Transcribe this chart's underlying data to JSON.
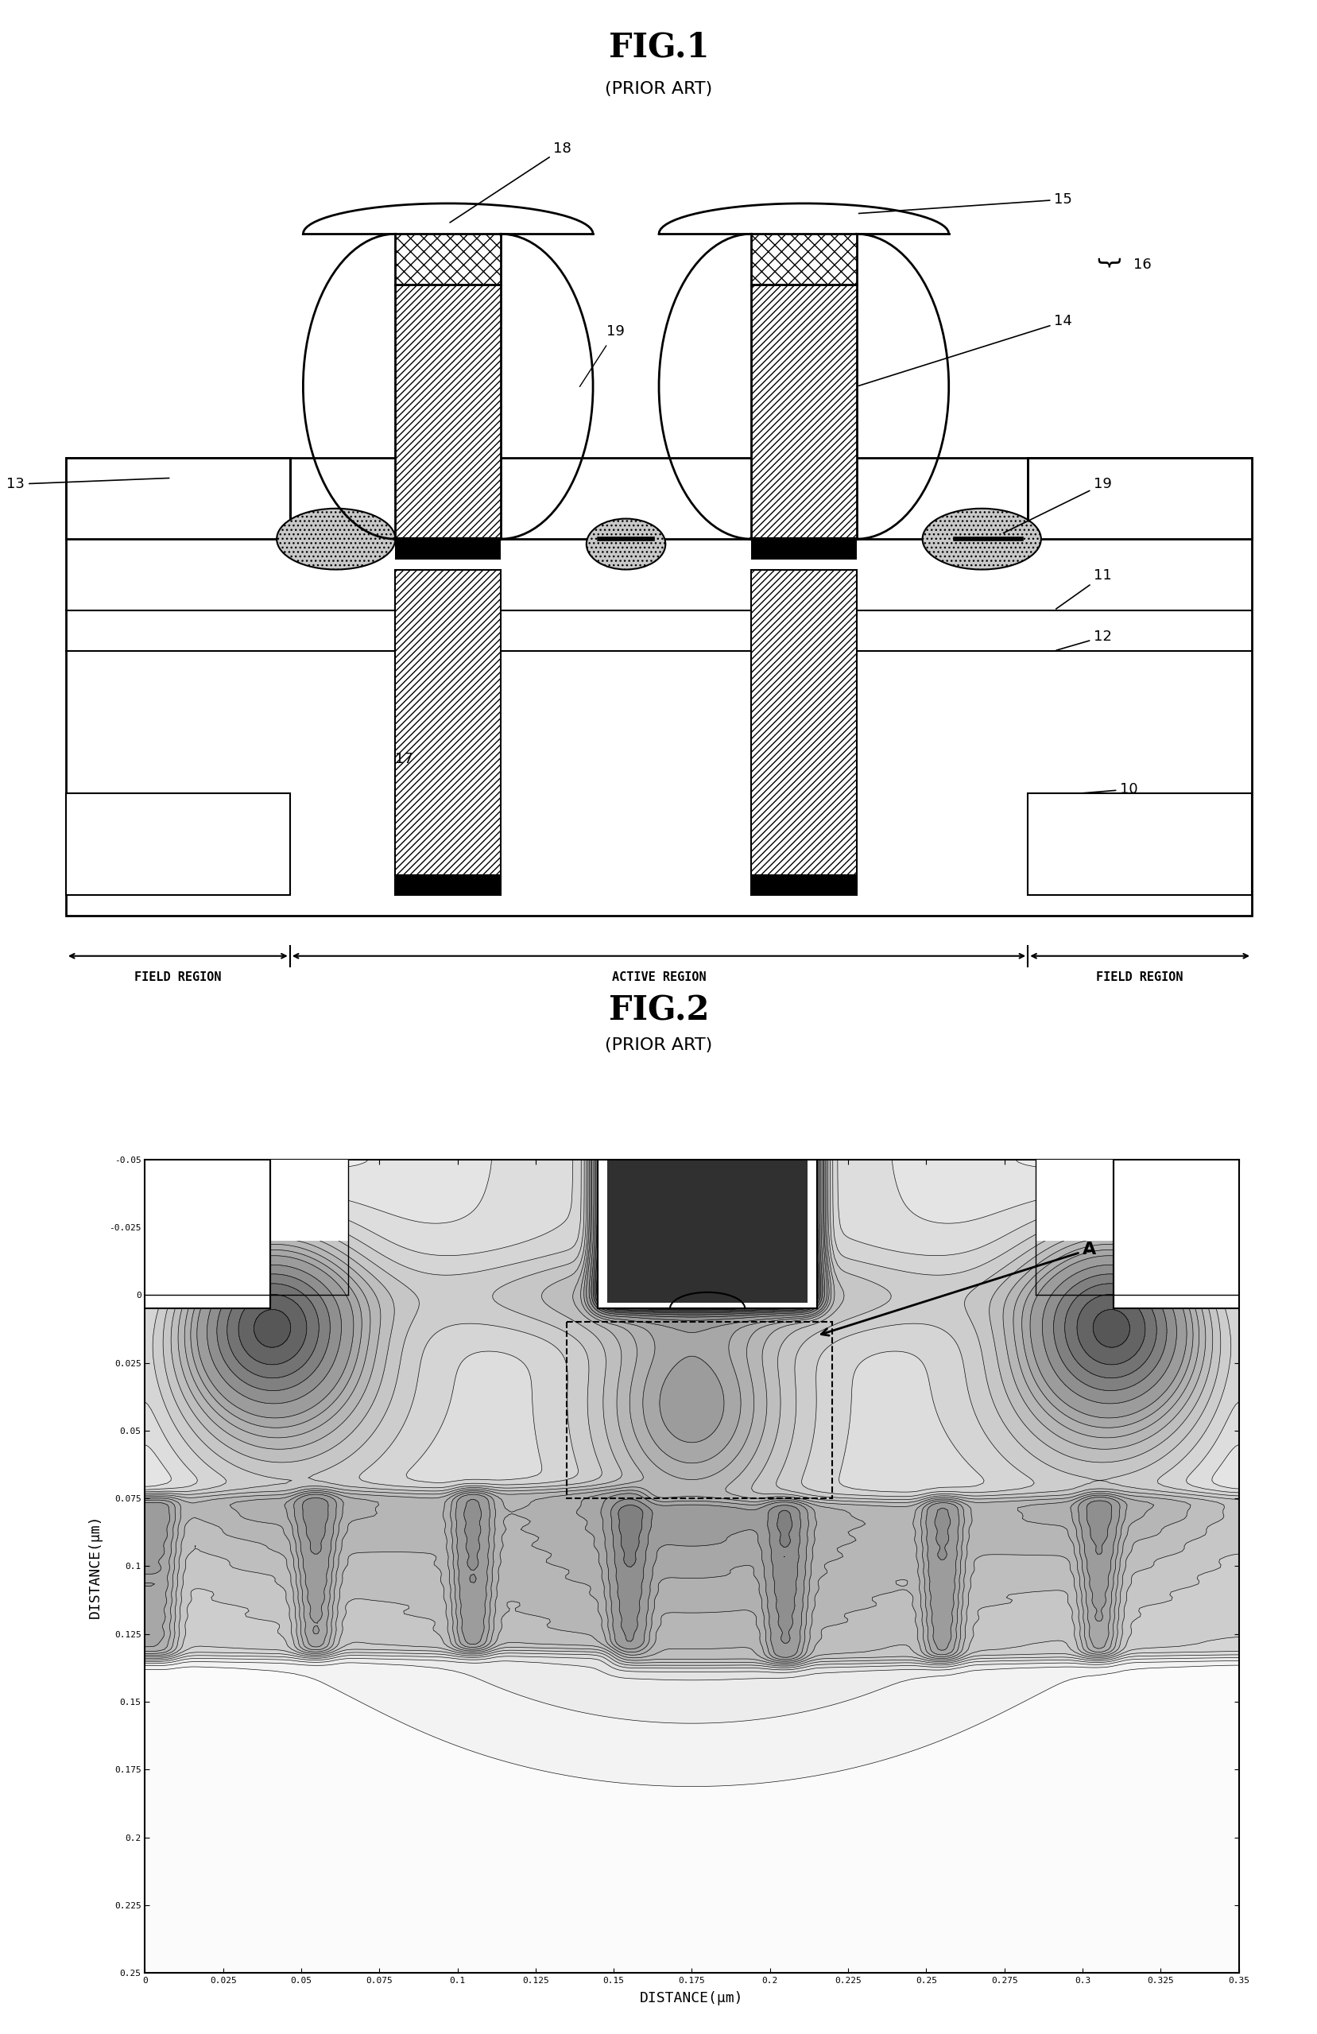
{
  "fig1_title": "FIG.1",
  "fig1_subtitle": "(PRIOR ART)",
  "fig2_title": "FIG.2",
  "fig2_subtitle": "(PRIOR ART)",
  "field_region_label": "FIELD REGION",
  "active_region_label": "ACTIVE REGION",
  "fig2_xlabel": "DISTANCE(μm)",
  "fig2_ylabel": "DISTANCE(μm)",
  "fig2_xticks": [
    0,
    0.025,
    0.05,
    0.075,
    0.1,
    0.125,
    0.15,
    0.175,
    0.2,
    0.225,
    0.25,
    0.275,
    0.3,
    0.325,
    0.35
  ],
  "fig2_yticks": [
    -0.05,
    -0.025,
    0,
    0.025,
    0.05,
    0.075,
    0.1,
    0.125,
    0.15,
    0.175,
    0.2,
    0.225,
    0.25
  ],
  "fig2_annotation": "A",
  "bg_color": "#ffffff",
  "line_color": "#000000"
}
